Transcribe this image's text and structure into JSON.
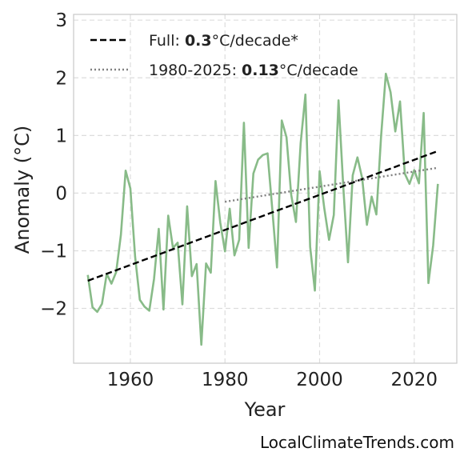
{
  "chart_data": {
    "type": "line",
    "xlabel": "Year",
    "ylabel": "Anomaly (°C)",
    "xlim": [
      1948,
      2029
    ],
    "ylim": [
      -2.95,
      3.1
    ],
    "x_ticks": [
      1960,
      1980,
      2000,
      2020
    ],
    "y_ticks": [
      3,
      2,
      1,
      0,
      -1,
      -2
    ],
    "y_tick_labels": [
      "3",
      "2",
      "1",
      "0",
      "−1",
      "−2"
    ],
    "grid": true,
    "legend_position": "top-left",
    "colors": {
      "anomaly": "#88bb88",
      "full_trend": "#000000",
      "recent_trend": "#808080",
      "grid": "#dddddd",
      "frame": "#cccccc"
    },
    "legend": [
      {
        "prefix": "Full: ",
        "value": "0.3",
        "suffix": "°C/decade*",
        "style": "dashed"
      },
      {
        "prefix": "1980-2025: ",
        "value": "0.13",
        "suffix": "°C/decade",
        "style": "dotted"
      }
    ],
    "series": [
      {
        "style": "solid",
        "x": [
          1951,
          1952,
          1953,
          1954,
          1955,
          1956,
          1957,
          1958,
          1959,
          1960,
          1961,
          1962,
          1963,
          1964,
          1965,
          1966,
          1967,
          1968,
          1969,
          1970,
          1971,
          1972,
          1973,
          1974,
          1975,
          1976,
          1977,
          1978,
          1979,
          1980,
          1981,
          1982,
          1983,
          1984,
          1985,
          1986,
          1987,
          1988,
          1989,
          1990,
          1991,
          1992,
          1993,
          1994,
          1995,
          1996,
          1997,
          1998,
          1999,
          2000,
          2001,
          2002,
          2003,
          2004,
          2005,
          2006,
          2007,
          2008,
          2009,
          2010,
          2011,
          2012,
          2013,
          2014,
          2015,
          2016,
          2017,
          2018,
          2019,
          2020,
          2021,
          2022,
          2023,
          2024,
          2025
        ],
        "values": [
          -1.42,
          -1.98,
          -2.06,
          -1.92,
          -1.4,
          -1.57,
          -1.37,
          -0.72,
          0.39,
          0.08,
          -1.1,
          -1.85,
          -1.97,
          -2.04,
          -1.49,
          -0.62,
          -2.02,
          -0.39,
          -0.95,
          -0.86,
          -1.93,
          -0.23,
          -1.44,
          -1.23,
          -2.63,
          -1.22,
          -1.38,
          0.21,
          -0.51,
          -1.01,
          -0.27,
          -1.08,
          -0.81,
          1.22,
          -0.95,
          0.34,
          0.58,
          0.66,
          0.69,
          -0.28,
          -1.29,
          1.26,
          0.97,
          -0.03,
          -0.5,
          0.87,
          1.71,
          -0.93,
          -1.69,
          0.38,
          -0.27,
          -0.81,
          -0.38,
          1.61,
          0.12,
          -1.2,
          0.31,
          0.62,
          0.26,
          -0.55,
          -0.06,
          -0.37,
          0.99,
          2.07,
          1.75,
          1.07,
          1.59,
          0.34,
          0.16,
          0.4,
          0.17,
          1.39,
          -1.56,
          -0.91,
          0.16
        ]
      },
      {
        "style": "dashed",
        "x": [
          1951,
          2025
        ],
        "values": [
          -1.52,
          0.73
        ]
      },
      {
        "style": "dotted",
        "x": [
          1980,
          2025
        ],
        "values": [
          -0.15,
          0.44
        ]
      }
    ]
  },
  "watermark": "LocalClimateTrends.com"
}
